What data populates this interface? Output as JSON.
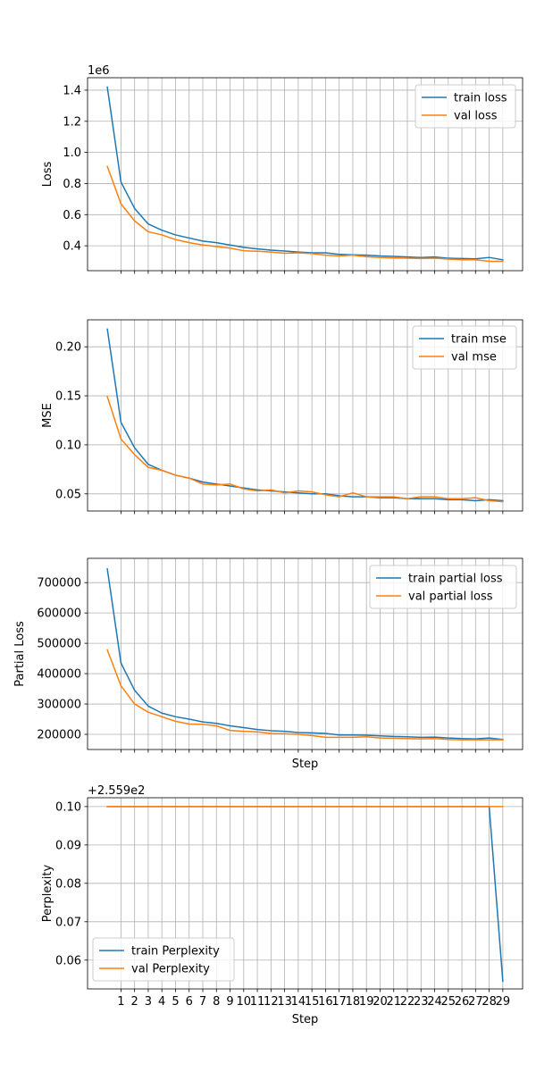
{
  "chart_data": [
    {
      "type": "line",
      "ylabel": "Loss",
      "xlabel": "",
      "offset_text": "1e6",
      "scale": 1000000,
      "ylim": [
        0.24,
        1.48
      ],
      "yticks": [
        0.4,
        0.6,
        0.8,
        1.0,
        1.2,
        1.4
      ],
      "ytick_labels": [
        "0.4",
        "0.6",
        "0.8",
        "1.0",
        "1.2",
        "1.4"
      ],
      "show_xtick_labels": false,
      "legend": "top-right",
      "series": [
        {
          "name": "train loss",
          "color": "#1f77b4",
          "values": [
            1.42,
            0.81,
            0.64,
            0.54,
            0.5,
            0.47,
            0.45,
            0.43,
            0.42,
            0.405,
            0.39,
            0.38,
            0.372,
            0.366,
            0.36,
            0.355,
            0.355,
            0.345,
            0.342,
            0.34,
            0.335,
            0.332,
            0.328,
            0.325,
            0.328,
            0.32,
            0.318,
            0.316,
            0.325,
            0.31
          ]
        },
        {
          "name": "val loss",
          "color": "#ff7f0e",
          "values": [
            0.91,
            0.67,
            0.56,
            0.49,
            0.47,
            0.44,
            0.42,
            0.405,
            0.395,
            0.385,
            0.368,
            0.365,
            0.36,
            0.352,
            0.355,
            0.35,
            0.34,
            0.335,
            0.34,
            0.33,
            0.325,
            0.322,
            0.32,
            0.318,
            0.32,
            0.315,
            0.31,
            0.31,
            0.3,
            0.3
          ]
        }
      ]
    },
    {
      "type": "line",
      "ylabel": "MSE",
      "xlabel": "",
      "ylim": [
        0.0325,
        0.2275
      ],
      "yticks": [
        0.05,
        0.1,
        0.15,
        0.2
      ],
      "ytick_labels": [
        "0.05",
        "0.10",
        "0.15",
        "0.20"
      ],
      "show_xtick_labels": false,
      "legend": "top-right",
      "series": [
        {
          "name": "train mse",
          "color": "#1f77b4",
          "values": [
            0.218,
            0.123,
            0.097,
            0.08,
            0.074,
            0.069,
            0.066,
            0.062,
            0.06,
            0.058,
            0.056,
            0.054,
            0.053,
            0.052,
            0.051,
            0.05,
            0.05,
            0.048,
            0.047,
            0.047,
            0.046,
            0.046,
            0.045,
            0.045,
            0.045,
            0.044,
            0.044,
            0.043,
            0.044,
            0.043
          ]
        },
        {
          "name": "val mse",
          "color": "#ff7f0e",
          "values": [
            0.149,
            0.106,
            0.09,
            0.077,
            0.074,
            0.069,
            0.066,
            0.06,
            0.059,
            0.06,
            0.055,
            0.053,
            0.054,
            0.051,
            0.053,
            0.052,
            0.049,
            0.047,
            0.051,
            0.047,
            0.047,
            0.047,
            0.045,
            0.047,
            0.047,
            0.045,
            0.045,
            0.046,
            0.043,
            0.042
          ]
        }
      ]
    },
    {
      "type": "line",
      "ylabel": "Partial Loss",
      "xlabel": "Step",
      "ylim": [
        150000,
        780000
      ],
      "yticks": [
        200000,
        300000,
        400000,
        500000,
        600000,
        700000
      ],
      "ytick_labels": [
        "200000",
        "300000",
        "400000",
        "500000",
        "600000",
        "700000"
      ],
      "show_xtick_labels": false,
      "legend": "top-right",
      "series": [
        {
          "name": "train partial loss",
          "color": "#1f77b4",
          "values": [
            745000,
            435000,
            345000,
            293000,
            270000,
            258000,
            250000,
            241000,
            236000,
            228000,
            222000,
            216000,
            212000,
            210000,
            206000,
            205000,
            203000,
            198000,
            198000,
            197000,
            195000,
            193000,
            192000,
            190000,
            191000,
            188000,
            186000,
            185000,
            188000,
            183000
          ]
        },
        {
          "name": "val partial loss",
          "color": "#ff7f0e",
          "values": [
            478000,
            360000,
            300000,
            273000,
            258000,
            243000,
            234000,
            233000,
            228000,
            213000,
            210000,
            208000,
            203000,
            202000,
            200000,
            196000,
            190000,
            190000,
            190000,
            192000,
            188000,
            187000,
            186000,
            185000,
            186000,
            183000,
            182000,
            182000,
            182000,
            182000
          ]
        }
      ]
    },
    {
      "type": "line",
      "ylabel": "Perplexity",
      "xlabel": "Step",
      "offset_text": "+2.559e2",
      "offset": 255.9,
      "ylim": [
        0.0525,
        0.1023
      ],
      "yticks": [
        0.06,
        0.07,
        0.08,
        0.09,
        0.1
      ],
      "ytick_labels": [
        "0.06",
        "0.07",
        "0.08",
        "0.09",
        "0.10"
      ],
      "show_xtick_labels": true,
      "legend": "bottom-left",
      "series": [
        {
          "name": "train Perplexity",
          "color": "#1f77b4",
          "values": [
            0.1,
            0.1,
            0.1,
            0.1,
            0.1,
            0.1,
            0.1,
            0.1,
            0.1,
            0.1,
            0.1,
            0.1,
            0.1,
            0.1,
            0.1,
            0.1,
            0.1,
            0.1,
            0.1,
            0.1,
            0.1,
            0.1,
            0.1,
            0.1,
            0.1,
            0.1,
            0.1,
            0.1,
            0.1,
            0.0545
          ]
        },
        {
          "name": "val Perplexity",
          "color": "#ff7f0e",
          "values": [
            0.1,
            0.1,
            0.1,
            0.1,
            0.1,
            0.1,
            0.1,
            0.1,
            0.1,
            0.1,
            0.1,
            0.1,
            0.1,
            0.1,
            0.1,
            0.1,
            0.1,
            0.1,
            0.1,
            0.1,
            0.1,
            0.1,
            0.1,
            0.1,
            0.1,
            0.1,
            0.1,
            0.1,
            0.1,
            0.1
          ]
        }
      ]
    }
  ],
  "x_axis": {
    "steps": [
      0,
      1,
      2,
      3,
      4,
      5,
      6,
      7,
      8,
      9,
      10,
      11,
      12,
      13,
      14,
      15,
      16,
      17,
      18,
      19,
      20,
      21,
      22,
      23,
      24,
      25,
      26,
      27,
      28,
      29
    ],
    "tick_labels": [
      "1",
      "2",
      "3",
      "4",
      "5",
      "6",
      "7",
      "8",
      "9",
      "10",
      "11",
      "12",
      "13",
      "14",
      "15",
      "16",
      "17",
      "18",
      "19",
      "20",
      "21",
      "22",
      "23",
      "24",
      "25",
      "26",
      "27",
      "28",
      "29"
    ],
    "xlim": [
      -1.45,
      30.45
    ]
  }
}
